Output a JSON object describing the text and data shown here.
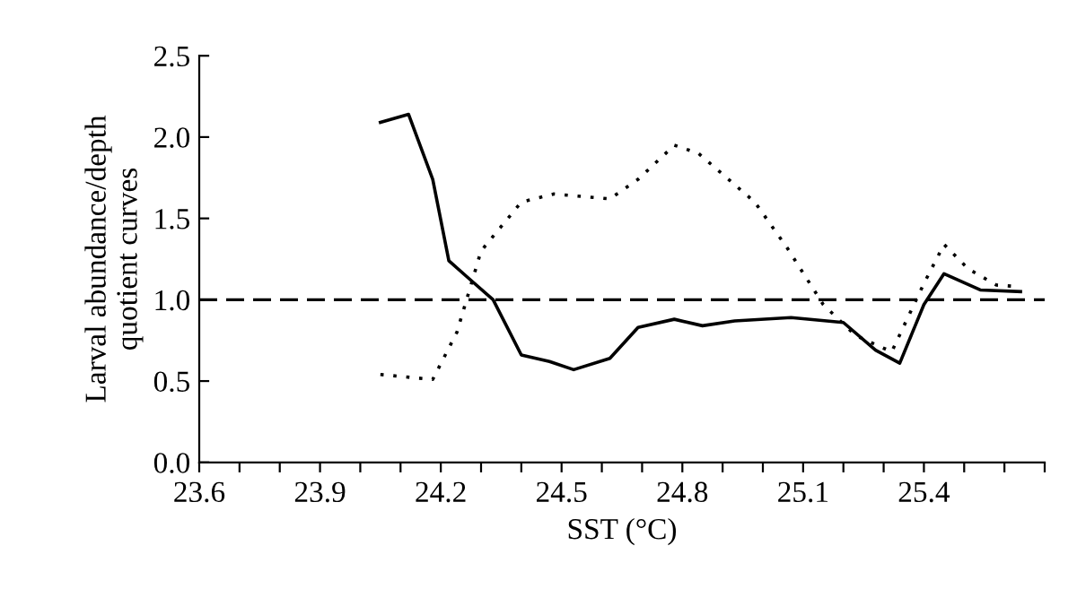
{
  "chart_data": {
    "type": "line",
    "xlabel": "SST (°C)",
    "ylabel": "Larval abundance/depth\nquotient curves",
    "xlim": [
      23.6,
      25.7
    ],
    "xticks": [
      23.6,
      {
        "value": 23.7,
        "label": null
      },
      {
        "value": 23.8,
        "label": null
      },
      23.9,
      {
        "value": 24.0,
        "label": null
      },
      {
        "value": 24.1,
        "label": null
      },
      24.2,
      {
        "value": 24.3,
        "label": null
      },
      {
        "value": 24.4,
        "label": null
      },
      24.5,
      {
        "value": 24.6,
        "label": null
      },
      {
        "value": 24.7,
        "label": null
      },
      24.8,
      {
        "value": 24.9,
        "label": null
      },
      {
        "value": 25.0,
        "label": null
      },
      25.1,
      {
        "value": 25.2,
        "label": null
      },
      {
        "value": 25.3,
        "label": null
      },
      25.4,
      {
        "value": 25.5,
        "label": null
      },
      {
        "value": 25.6,
        "label": null
      },
      {
        "value": 25.7,
        "label": null
      }
    ],
    "ylim": [
      0,
      2.5
    ],
    "yticks": [
      {
        "value": 0,
        "label": "0.0"
      },
      0.5,
      {
        "value": 1,
        "label": "1.0"
      },
      1.5,
      {
        "value": 2,
        "label": "2.0"
      },
      2.5
    ],
    "grid": false,
    "legend": false,
    "marker": "none",
    "ref_lines": [
      {
        "axis": "y",
        "value": 1,
        "color": "#000000",
        "line_style": "dashed"
      }
    ],
    "series": [
      {
        "color": "#000000",
        "line_style": "solid",
        "x": [
          24.05,
          24.12,
          24.18,
          24.22,
          24.27,
          24.33,
          24.4,
          24.47,
          24.53,
          24.62,
          24.69,
          24.78,
          24.85,
          24.93,
          25.07,
          25.2,
          25.28,
          25.34,
          25.4,
          25.45,
          25.54,
          25.64
        ],
        "values": [
          2.09,
          2.14,
          1.74,
          1.24,
          1.13,
          1.0,
          0.66,
          0.62,
          0.57,
          0.64,
          0.83,
          0.88,
          0.84,
          0.87,
          0.89,
          0.86,
          0.69,
          0.61,
          0.97,
          1.16,
          1.06,
          1.05
        ]
      },
      {
        "color": "#000000",
        "line_style": "dotted",
        "x": [
          24.05,
          24.18,
          24.24,
          24.3,
          24.4,
          24.48,
          24.62,
          24.69,
          24.78,
          24.84,
          24.98,
          25.06,
          25.15,
          25.23,
          25.32,
          25.4,
          25.45,
          25.51,
          25.58,
          25.64
        ],
        "values": [
          0.54,
          0.51,
          0.8,
          1.3,
          1.6,
          1.65,
          1.62,
          1.74,
          1.95,
          1.9,
          1.6,
          1.32,
          0.97,
          0.78,
          0.68,
          1.1,
          1.34,
          1.19,
          1.09,
          1.08
        ]
      }
    ]
  }
}
